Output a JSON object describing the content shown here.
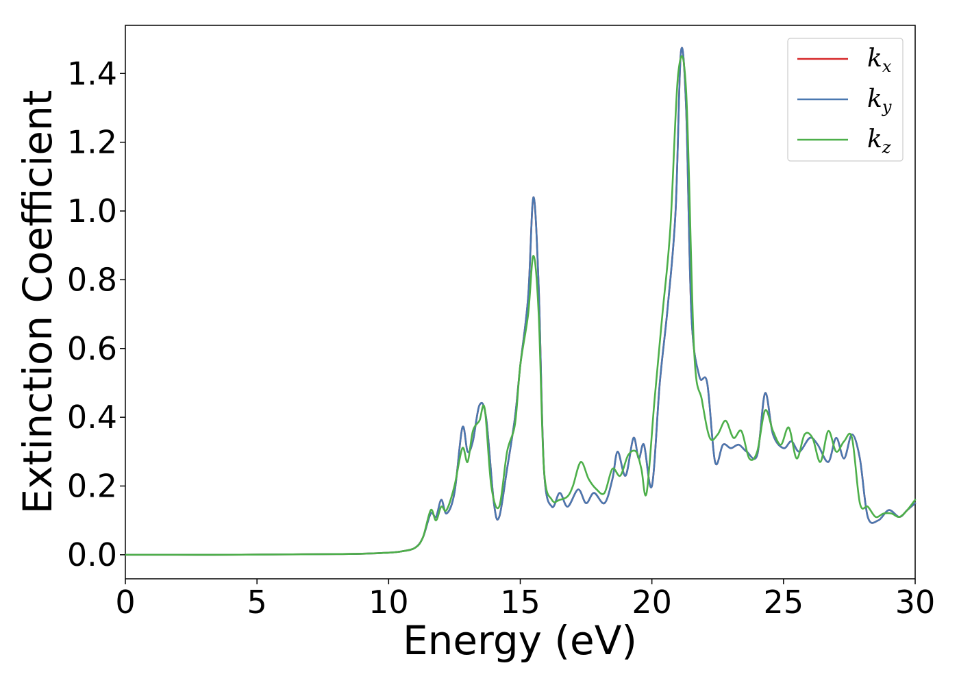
{
  "chart_data": {
    "type": "line",
    "title": "",
    "xlabel": "Energy (eV)",
    "ylabel": "Extinction Coefficient",
    "xlim": [
      0,
      30
    ],
    "ylim": [
      -0.07,
      1.54
    ],
    "xticks": [
      "0",
      "5",
      "10",
      "15",
      "20",
      "25",
      "30"
    ],
    "xtick_values": [
      0,
      5,
      10,
      15,
      20,
      25,
      30
    ],
    "yticks": [
      "0.0",
      "0.2",
      "0.4",
      "0.6",
      "0.8",
      "1.0",
      "1.2",
      "1.4"
    ],
    "ytick_values": [
      0.0,
      0.2,
      0.4,
      0.6,
      0.8,
      1.0,
      1.2,
      1.4
    ],
    "grid": false,
    "legend_position": "top-right",
    "legend": [
      {
        "base": "k",
        "sub": "x",
        "color": "#d62728"
      },
      {
        "base": "k",
        "sub": "y",
        "color": "#4a78b0"
      },
      {
        "base": "k",
        "sub": "z",
        "color": "#4daf4a"
      }
    ],
    "series": [
      {
        "name": "k_x",
        "color": "#d62728",
        "x": [
          0,
          2,
          4,
          6,
          8,
          9,
          10,
          10.5,
          11,
          11.3,
          11.6,
          11.8,
          12.0,
          12.2,
          12.5,
          12.8,
          13.0,
          13.2,
          13.45,
          13.7,
          14.0,
          14.2,
          14.5,
          14.8,
          15.0,
          15.3,
          15.5,
          15.7,
          15.9,
          16.2,
          16.5,
          16.8,
          17.2,
          17.5,
          17.8,
          18.2,
          18.5,
          18.7,
          19.0,
          19.3,
          19.5,
          19.7,
          20.0,
          20.3,
          20.6,
          20.9,
          21.1,
          21.3,
          21.5,
          21.8,
          22.1,
          22.4,
          22.7,
          23.0,
          23.3,
          23.6,
          24.0,
          24.3,
          24.6,
          25.0,
          25.3,
          25.6,
          26.0,
          26.3,
          26.7,
          27.0,
          27.3,
          27.6,
          27.9,
          28.2,
          28.6,
          29.0,
          29.4,
          29.7,
          30.0
        ],
        "y": [
          0,
          0,
          0,
          0.001,
          0.002,
          0.003,
          0.006,
          0.01,
          0.02,
          0.05,
          0.12,
          0.11,
          0.16,
          0.12,
          0.18,
          0.37,
          0.3,
          0.33,
          0.435,
          0.4,
          0.15,
          0.11,
          0.25,
          0.4,
          0.55,
          0.75,
          1.04,
          0.78,
          0.25,
          0.14,
          0.18,
          0.14,
          0.19,
          0.15,
          0.18,
          0.15,
          0.22,
          0.3,
          0.23,
          0.34,
          0.28,
          0.32,
          0.2,
          0.5,
          0.72,
          1.0,
          1.46,
          1.3,
          0.7,
          0.52,
          0.5,
          0.27,
          0.32,
          0.31,
          0.32,
          0.3,
          0.29,
          0.47,
          0.35,
          0.31,
          0.33,
          0.3,
          0.34,
          0.32,
          0.27,
          0.34,
          0.28,
          0.35,
          0.28,
          0.11,
          0.1,
          0.13,
          0.11,
          0.13,
          0.15
        ]
      },
      {
        "name": "k_y",
        "color": "#4a78b0",
        "x": [
          0,
          2,
          4,
          6,
          8,
          9,
          10,
          10.5,
          11,
          11.3,
          11.6,
          11.8,
          12.0,
          12.2,
          12.5,
          12.8,
          13.0,
          13.2,
          13.45,
          13.7,
          14.0,
          14.2,
          14.5,
          14.8,
          15.0,
          15.3,
          15.5,
          15.7,
          15.9,
          16.2,
          16.5,
          16.8,
          17.2,
          17.5,
          17.8,
          18.2,
          18.5,
          18.7,
          19.0,
          19.3,
          19.5,
          19.7,
          20.0,
          20.3,
          20.6,
          20.9,
          21.1,
          21.3,
          21.5,
          21.8,
          22.1,
          22.4,
          22.7,
          23.0,
          23.3,
          23.6,
          24.0,
          24.3,
          24.6,
          25.0,
          25.3,
          25.6,
          26.0,
          26.3,
          26.7,
          27.0,
          27.3,
          27.6,
          27.9,
          28.2,
          28.6,
          29.0,
          29.4,
          29.7,
          30.0
        ],
        "y": [
          0,
          0,
          0,
          0.001,
          0.002,
          0.003,
          0.006,
          0.01,
          0.02,
          0.05,
          0.12,
          0.11,
          0.16,
          0.12,
          0.18,
          0.37,
          0.3,
          0.33,
          0.435,
          0.4,
          0.15,
          0.11,
          0.25,
          0.4,
          0.55,
          0.75,
          1.04,
          0.78,
          0.25,
          0.14,
          0.18,
          0.14,
          0.19,
          0.15,
          0.18,
          0.15,
          0.22,
          0.3,
          0.23,
          0.34,
          0.28,
          0.32,
          0.2,
          0.5,
          0.72,
          1.0,
          1.46,
          1.3,
          0.7,
          0.52,
          0.5,
          0.27,
          0.32,
          0.31,
          0.32,
          0.3,
          0.29,
          0.47,
          0.35,
          0.31,
          0.33,
          0.3,
          0.34,
          0.32,
          0.27,
          0.34,
          0.28,
          0.35,
          0.28,
          0.11,
          0.1,
          0.13,
          0.11,
          0.13,
          0.15
        ]
      },
      {
        "name": "k_z",
        "color": "#4daf4a",
        "x": [
          0,
          2,
          4,
          6,
          8,
          9,
          10,
          10.5,
          11,
          11.3,
          11.6,
          11.8,
          12.0,
          12.2,
          12.5,
          12.8,
          13.0,
          13.2,
          13.45,
          13.65,
          13.9,
          14.2,
          14.5,
          14.8,
          15.0,
          15.3,
          15.5,
          15.7,
          15.9,
          16.2,
          16.5,
          16.8,
          17.0,
          17.3,
          17.6,
          17.9,
          18.2,
          18.5,
          18.8,
          19.1,
          19.4,
          19.6,
          19.8,
          20.1,
          20.4,
          20.7,
          21.0,
          21.3,
          21.6,
          21.9,
          22.2,
          22.5,
          22.8,
          23.1,
          23.4,
          23.7,
          24.0,
          24.3,
          24.6,
          24.9,
          25.2,
          25.5,
          25.8,
          26.1,
          26.4,
          26.7,
          27.0,
          27.3,
          27.6,
          27.9,
          28.2,
          28.5,
          28.8,
          29.1,
          29.4,
          29.7,
          30.0
        ],
        "y": [
          0,
          0,
          0,
          0.001,
          0.002,
          0.003,
          0.006,
          0.01,
          0.02,
          0.05,
          0.13,
          0.1,
          0.14,
          0.13,
          0.2,
          0.31,
          0.27,
          0.36,
          0.39,
          0.425,
          0.2,
          0.14,
          0.3,
          0.38,
          0.55,
          0.7,
          0.87,
          0.7,
          0.25,
          0.16,
          0.16,
          0.17,
          0.2,
          0.27,
          0.22,
          0.19,
          0.18,
          0.25,
          0.23,
          0.29,
          0.3,
          0.25,
          0.18,
          0.45,
          0.7,
          0.95,
          1.4,
          1.35,
          0.6,
          0.45,
          0.34,
          0.35,
          0.39,
          0.34,
          0.36,
          0.28,
          0.3,
          0.42,
          0.36,
          0.32,
          0.37,
          0.28,
          0.35,
          0.34,
          0.27,
          0.36,
          0.3,
          0.33,
          0.34,
          0.15,
          0.14,
          0.11,
          0.12,
          0.12,
          0.11,
          0.13,
          0.16
        ]
      }
    ]
  }
}
